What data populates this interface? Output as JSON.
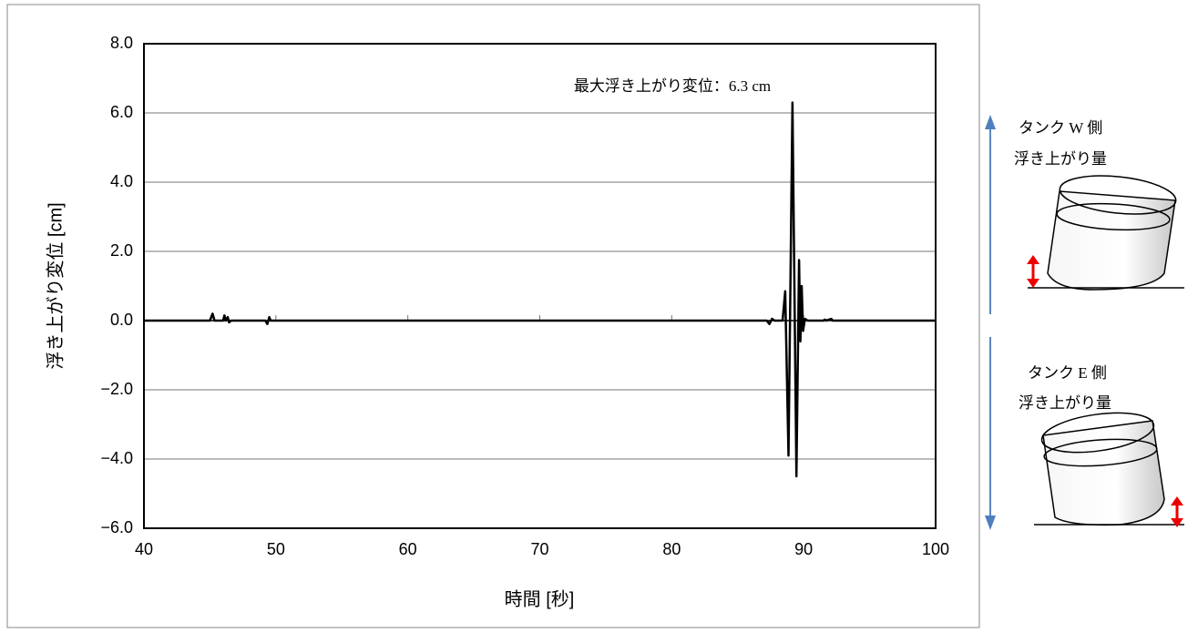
{
  "chart_data": {
    "type": "line",
    "y_label": "浮き上がり変位 [cm]",
    "x_label": "時間 [秒]",
    "annotation": "最大浮き上がり変位：6.3 cm",
    "side_labels": [
      "タンク W 側",
      "浮き上がり量",
      "タンク E 側",
      "浮き上がり量"
    ],
    "x": [
      40,
      45.0,
      45.2,
      45.35,
      46.0,
      46.1,
      46.2,
      46.35,
      46.45,
      46.6,
      49.2,
      49.35,
      49.5,
      49.6,
      87.2,
      87.4,
      87.6,
      87.8,
      88.4,
      88.6,
      88.85,
      89.15,
      89.45,
      89.65,
      89.75,
      89.85,
      89.95,
      90.1,
      90.3,
      91.5,
      91.6,
      91.7,
      92.1,
      92.2,
      100
    ],
    "series": [
      {
        "color": "#000000",
        "values": [
          0,
          0,
          0.2,
          0,
          0,
          0.15,
          0,
          0.1,
          -0.05,
          0,
          0,
          -0.1,
          0.1,
          0,
          0,
          -0.1,
          0.05,
          0,
          0,
          0.85,
          -3.9,
          6.3,
          -4.5,
          1.75,
          -0.6,
          1.0,
          -0.3,
          0.05,
          0,
          0,
          0.03,
          0,
          0.05,
          0,
          0
        ]
      }
    ],
    "xlim": [
      40,
      100
    ],
    "xticks": [
      40,
      50,
      60,
      70,
      80,
      90,
      100
    ],
    "ylim": [
      -6,
      8
    ],
    "yticks": [
      {
        "value": -6,
        "label": "−6.0"
      },
      {
        "value": -4,
        "label": "−4.0"
      },
      {
        "value": -2,
        "label": "−2.0"
      },
      {
        "value": 0,
        "label": "0.0"
      },
      {
        "value": 2,
        "label": "2.0"
      },
      {
        "value": 4,
        "label": "4.0"
      },
      {
        "value": 6,
        "label": "6.0"
      },
      {
        "value": 8,
        "label": "8.0"
      }
    ],
    "grid": true
  }
}
